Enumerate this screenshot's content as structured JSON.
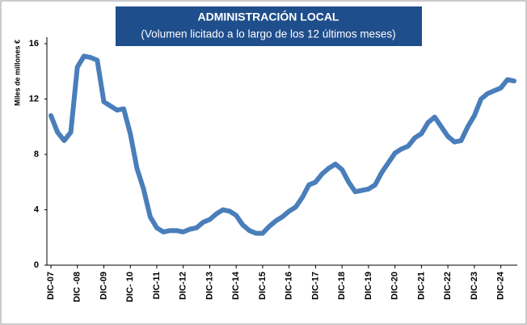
{
  "chart_data": {
    "type": "line",
    "title": "ADMINISTRACIÓN LOCAL",
    "subtitle": "(Volumen licitado a lo largo de los 12 últimos meses)",
    "y_label": "Miles de millones €",
    "categories": [
      "DIC-07",
      null,
      null,
      null,
      "DIC -08",
      null,
      null,
      null,
      "DIC-09",
      null,
      null,
      null,
      "DIC- 10",
      null,
      null,
      null,
      "DIC-11",
      null,
      null,
      null,
      "DIC-12",
      null,
      null,
      null,
      "DIC-13",
      null,
      null,
      null,
      "DIC-14",
      null,
      null,
      null,
      "DIC-15",
      null,
      null,
      null,
      "DIC-16",
      null,
      null,
      null,
      "DIC-17",
      null,
      null,
      null,
      "DIC-18",
      null,
      null,
      null,
      "DIC-19",
      null,
      null,
      null,
      "DIC-20",
      null,
      null,
      null,
      "DIC-21",
      null,
      null,
      null,
      "DIC-22",
      null,
      null,
      null,
      "DIC-23",
      null,
      null,
      null,
      "DIC-24",
      null,
      null
    ],
    "series": [
      {
        "name": "Administración local",
        "color": "#4a7ebb",
        "values": [
          10.8,
          9.6,
          9.0,
          9.6,
          14.3,
          15.1,
          15.0,
          14.8,
          11.8,
          11.5,
          11.2,
          11.3,
          9.5,
          7.0,
          5.5,
          3.5,
          2.7,
          2.4,
          2.5,
          2.5,
          2.4,
          2.6,
          2.7,
          3.1,
          3.3,
          3.7,
          4.0,
          3.9,
          3.6,
          2.9,
          2.5,
          2.3,
          2.3,
          2.8,
          3.2,
          3.5,
          3.9,
          4.2,
          4.9,
          5.8,
          6.0,
          6.6,
          7.0,
          7.3,
          6.9,
          6.0,
          5.3,
          5.4,
          5.5,
          5.8,
          6.7,
          7.4,
          8.1,
          8.4,
          8.6,
          9.2,
          9.5,
          10.3,
          10.7,
          10.0,
          9.3,
          8.9,
          9.0,
          10.0,
          10.8,
          12.0,
          12.4,
          12.6,
          12.8,
          13.4,
          13.3
        ]
      }
    ],
    "ylim": [
      0,
      16
    ],
    "yticks": [
      0,
      4,
      8,
      12,
      16
    ],
    "grid": false
  }
}
